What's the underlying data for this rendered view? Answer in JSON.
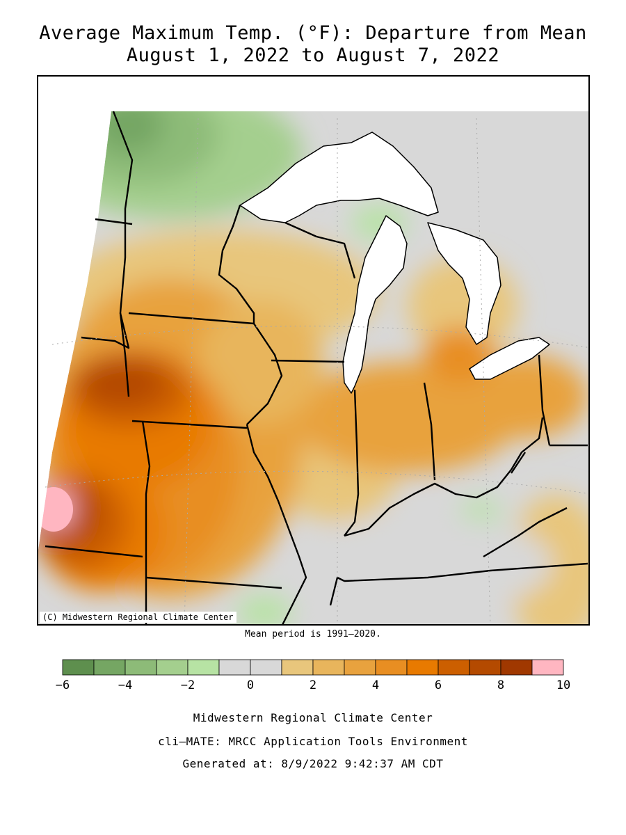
{
  "title_line1": "Average Maximum Temp. (°F): Departure from Mean",
  "title_line2": "August 1, 2022 to August 7, 2022",
  "map_credit": "(C) Midwestern Regional Climate Center",
  "mean_period": "Mean period is 1991–2020.",
  "legend": {
    "bins": [
      {
        "from": -6,
        "to": -5,
        "color": "#5e8f4e"
      },
      {
        "from": -5,
        "to": -4,
        "color": "#75a663"
      },
      {
        "from": -4,
        "to": -3,
        "color": "#8dbb78"
      },
      {
        "from": -3,
        "to": -2,
        "color": "#a4cf8e"
      },
      {
        "from": -2,
        "to": -1,
        "color": "#b7e3a4"
      },
      {
        "from": -1,
        "to": 0,
        "color": "#d8d8d8"
      },
      {
        "from": 0,
        "to": 1,
        "color": "#d8d8d8"
      },
      {
        "from": 1,
        "to": 2,
        "color": "#e8c67c"
      },
      {
        "from": 2,
        "to": 3,
        "color": "#e8b55c"
      },
      {
        "from": 3,
        "to": 4,
        "color": "#e8a23e"
      },
      {
        "from": 4,
        "to": 5,
        "color": "#e88e22"
      },
      {
        "from": 5,
        "to": 6,
        "color": "#e87a00"
      },
      {
        "from": 6,
        "to": 7,
        "color": "#cc5f00"
      },
      {
        "from": 7,
        "to": 8,
        "color": "#b44a00"
      },
      {
        "from": 8,
        "to": 9,
        "color": "#a03800"
      },
      {
        "from": 9,
        "to": 10,
        "color": "#ffb6c1"
      }
    ],
    "tick_labels": [
      "−6",
      "−4",
      "−2",
      "0",
      "2",
      "4",
      "6",
      "8",
      "10"
    ],
    "tick_values": [
      -6,
      -4,
      -2,
      0,
      2,
      4,
      6,
      8,
      10
    ]
  },
  "footer": {
    "line1": "Midwestern Regional Climate Center",
    "line2": "cli–MATE: MRCC Application Tools Environment",
    "line3": "Generated at: 8/9/2022 9:42:37 AM CDT"
  },
  "colors": {
    "lake_fill": "#ffffff",
    "border": "#000000",
    "no_data": "#ffffff"
  }
}
